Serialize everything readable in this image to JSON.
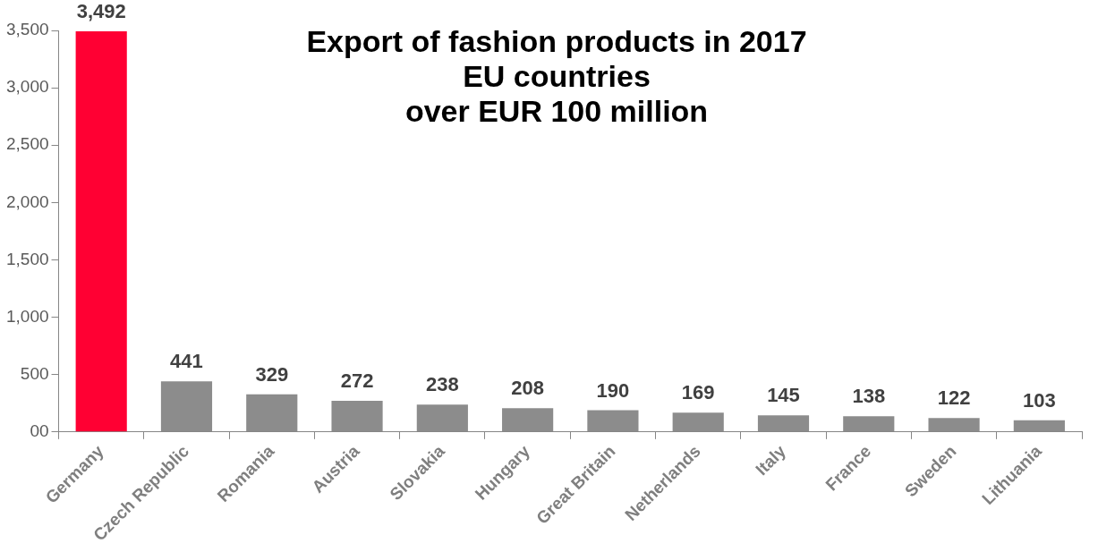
{
  "chart_data": {
    "type": "bar",
    "title": "Export of fashion products in 2017\nEU countries\nover EUR 100 million",
    "categories": [
      "Germany",
      "Czech Republic",
      "Romania",
      "Austria",
      "Slovakia",
      "Hungary",
      "Great Britain",
      "Netherlands",
      "Italy",
      "France",
      "Sweden",
      "Lithuania"
    ],
    "values": [
      3492,
      441,
      329,
      272,
      238,
      208,
      190,
      169,
      145,
      138,
      122,
      103
    ],
    "colors": [
      "#ff0033",
      "#8c8c8c",
      "#8c8c8c",
      "#8c8c8c",
      "#8c8c8c",
      "#8c8c8c",
      "#8c8c8c",
      "#8c8c8c",
      "#8c8c8c",
      "#8c8c8c",
      "#8c8c8c",
      "#8c8c8c"
    ],
    "ylim": [
      0,
      3500
    ],
    "yticks": [
      {
        "value": 0,
        "label": "00"
      },
      {
        "value": 500,
        "label": "500"
      },
      {
        "value": 1000,
        "label": "1,000"
      },
      {
        "value": 1500,
        "label": "1,500"
      },
      {
        "value": 2000,
        "label": "2,000"
      },
      {
        "value": 2500,
        "label": "2,500"
      },
      {
        "value": 3000,
        "label": "3,000"
      },
      {
        "value": 3500,
        "label": "3,500"
      }
    ],
    "value_labels": [
      "3,492",
      "441",
      "329",
      "272",
      "238",
      "208",
      "190",
      "169",
      "145",
      "138",
      "122",
      "103"
    ],
    "grid": false,
    "legend": false
  }
}
